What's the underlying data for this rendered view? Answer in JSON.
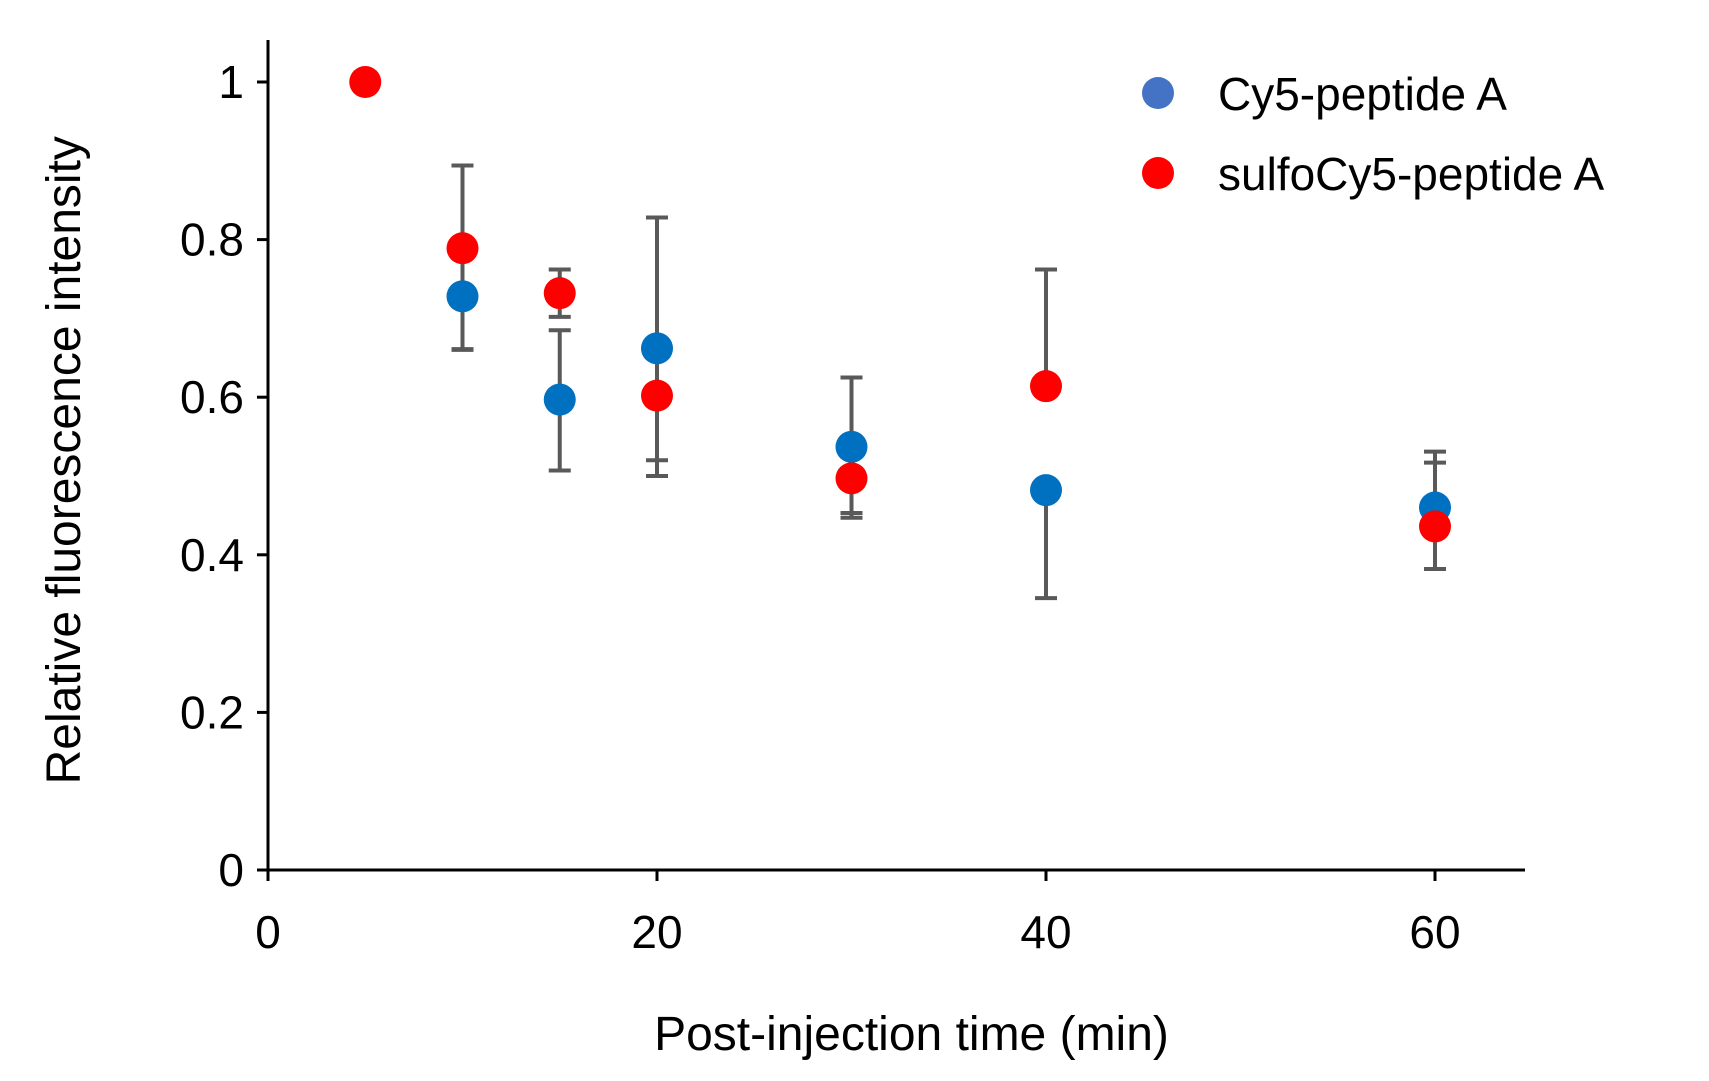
{
  "chart_data": {
    "type": "scatter",
    "title": "",
    "xlabel": "Post-injection time (min)",
    "ylabel": "Relative fluorescence intensity",
    "xlim": [
      0,
      65
    ],
    "ylim": [
      0,
      1.05
    ],
    "xticks": [
      0,
      20,
      40,
      60
    ],
    "xtick_labels": [
      "0",
      "20",
      "40",
      "60"
    ],
    "yticks": [
      0,
      0.2,
      0.4,
      0.6,
      0.8,
      1
    ],
    "ytick_labels": [
      "0",
      "0.2",
      "0.4",
      "0.6",
      "0.8",
      "1"
    ],
    "grid": false,
    "legend_position": "top-right",
    "error_bar_color": "#595959",
    "series": [
      {
        "name": "Cy5-peptide A",
        "color": "#0070c0",
        "legend_color": "#4472c4",
        "x": [
          10,
          15,
          20,
          30,
          40,
          60
        ],
        "y": [
          0.728,
          0.597,
          0.662,
          0.537,
          0.482,
          0.46
        ],
        "err_low": [
          0.068,
          0.09,
          0.142,
          0.09,
          0.137,
          0.078
        ],
        "err_high": [
          0.0,
          0.088,
          0.0,
          0.088,
          0.0,
          0.057
        ],
        "cap_low": true,
        "cap_high": [
          false,
          true,
          false,
          true,
          false,
          true
        ]
      },
      {
        "name": "sulfoCy5-peptide A",
        "color": "#ff0000",
        "legend_color": "#ff0000",
        "x": [
          5,
          10,
          15,
          20,
          30,
          40,
          60
        ],
        "y": [
          1.0,
          0.789,
          0.732,
          0.602,
          0.497,
          0.614,
          0.436
        ],
        "err_low": [
          0.0,
          0.128,
          0.03,
          0.102,
          0.044,
          0.0,
          0.054
        ],
        "err_high": [
          0.0,
          0.105,
          0.03,
          0.226,
          0.0,
          0.148,
          0.095
        ],
        "cap_low": [
          false,
          true,
          true,
          true,
          true,
          false,
          true
        ],
        "cap_high": [
          false,
          true,
          true,
          true,
          false,
          true,
          true
        ]
      }
    ]
  }
}
